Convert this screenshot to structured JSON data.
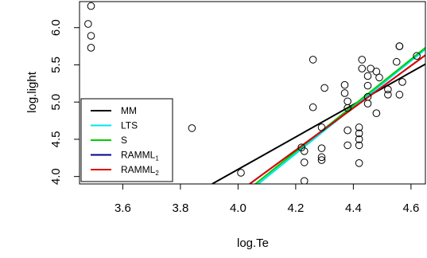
{
  "chart_data": {
    "type": "scatter",
    "title": "",
    "xlabel": "log.Te",
    "ylabel": "log.light",
    "xlim": [
      3.45,
      4.65
    ],
    "ylim": [
      3.9,
      6.35
    ],
    "xticks": [
      "3.6",
      "3.8",
      "4.0",
      "4.2",
      "4.4",
      "4.6"
    ],
    "yticks": [
      "4.0",
      "4.5",
      "5.0",
      "5.5",
      "6.0"
    ],
    "grid": false,
    "legend_position": "bottom-left",
    "points": [
      {
        "x": 3.48,
        "y": 6.05
      },
      {
        "x": 3.49,
        "y": 6.29
      },
      {
        "x": 3.49,
        "y": 5.89
      },
      {
        "x": 3.49,
        "y": 5.73
      },
      {
        "x": 3.84,
        "y": 4.65
      },
      {
        "x": 4.01,
        "y": 4.05
      },
      {
        "x": 4.22,
        "y": 4.39
      },
      {
        "x": 4.23,
        "y": 4.34
      },
      {
        "x": 4.23,
        "y": 4.19
      },
      {
        "x": 4.23,
        "y": 3.94
      },
      {
        "x": 4.26,
        "y": 5.57
      },
      {
        "x": 4.26,
        "y": 4.93
      },
      {
        "x": 4.29,
        "y": 4.66
      },
      {
        "x": 4.29,
        "y": 4.38
      },
      {
        "x": 4.29,
        "y": 4.26
      },
      {
        "x": 4.29,
        "y": 4.22
      },
      {
        "x": 4.3,
        "y": 5.19
      },
      {
        "x": 4.37,
        "y": 5.23
      },
      {
        "x": 4.37,
        "y": 5.12
      },
      {
        "x": 4.38,
        "y": 5.01
      },
      {
        "x": 4.38,
        "y": 4.92
      },
      {
        "x": 4.38,
        "y": 4.62
      },
      {
        "x": 4.38,
        "y": 4.42
      },
      {
        "x": 4.42,
        "y": 4.66
      },
      {
        "x": 4.42,
        "y": 4.58
      },
      {
        "x": 4.42,
        "y": 4.5
      },
      {
        "x": 4.42,
        "y": 4.42
      },
      {
        "x": 4.42,
        "y": 4.18
      },
      {
        "x": 4.43,
        "y": 5.57
      },
      {
        "x": 4.43,
        "y": 5.45
      },
      {
        "x": 4.45,
        "y": 5.35
      },
      {
        "x": 4.45,
        "y": 5.22
      },
      {
        "x": 4.45,
        "y": 5.07
      },
      {
        "x": 4.45,
        "y": 4.98
      },
      {
        "x": 4.46,
        "y": 5.45
      },
      {
        "x": 4.48,
        "y": 5.41
      },
      {
        "x": 4.48,
        "y": 4.85
      },
      {
        "x": 4.49,
        "y": 5.33
      },
      {
        "x": 4.52,
        "y": 5.17
      },
      {
        "x": 4.52,
        "y": 5.1
      },
      {
        "x": 4.55,
        "y": 5.54
      },
      {
        "x": 4.56,
        "y": 5.75
      },
      {
        "x": 4.56,
        "y": 5.75
      },
      {
        "x": 4.56,
        "y": 5.1
      },
      {
        "x": 4.57,
        "y": 5.27
      },
      {
        "x": 4.62,
        "y": 5.62
      }
    ],
    "series": [
      {
        "name": "MM",
        "color": "#000000",
        "line": [
          {
            "x": 3.91,
            "y": 3.9
          },
          {
            "x": 4.65,
            "y": 5.51
          }
        ]
      },
      {
        "name": "LTS",
        "color": "#00e5ee",
        "line": [
          {
            "x": 4.07,
            "y": 3.9
          },
          {
            "x": 4.65,
            "y": 5.71
          }
        ]
      },
      {
        "name": "S",
        "color": "#00cd00",
        "line": [
          {
            "x": 4.06,
            "y": 3.9
          },
          {
            "x": 4.65,
            "y": 5.73
          }
        ]
      },
      {
        "name": "RAMML",
        "name_subscript": "1",
        "color": "#00008b",
        "line": [
          {
            "x": 4.04,
            "y": 3.9
          },
          {
            "x": 4.65,
            "y": 5.63
          }
        ]
      },
      {
        "name": "RAMML",
        "name_subscript": "2",
        "color": "#e00000",
        "line": [
          {
            "x": 4.04,
            "y": 3.9
          },
          {
            "x": 4.65,
            "y": 5.63
          }
        ]
      }
    ]
  }
}
